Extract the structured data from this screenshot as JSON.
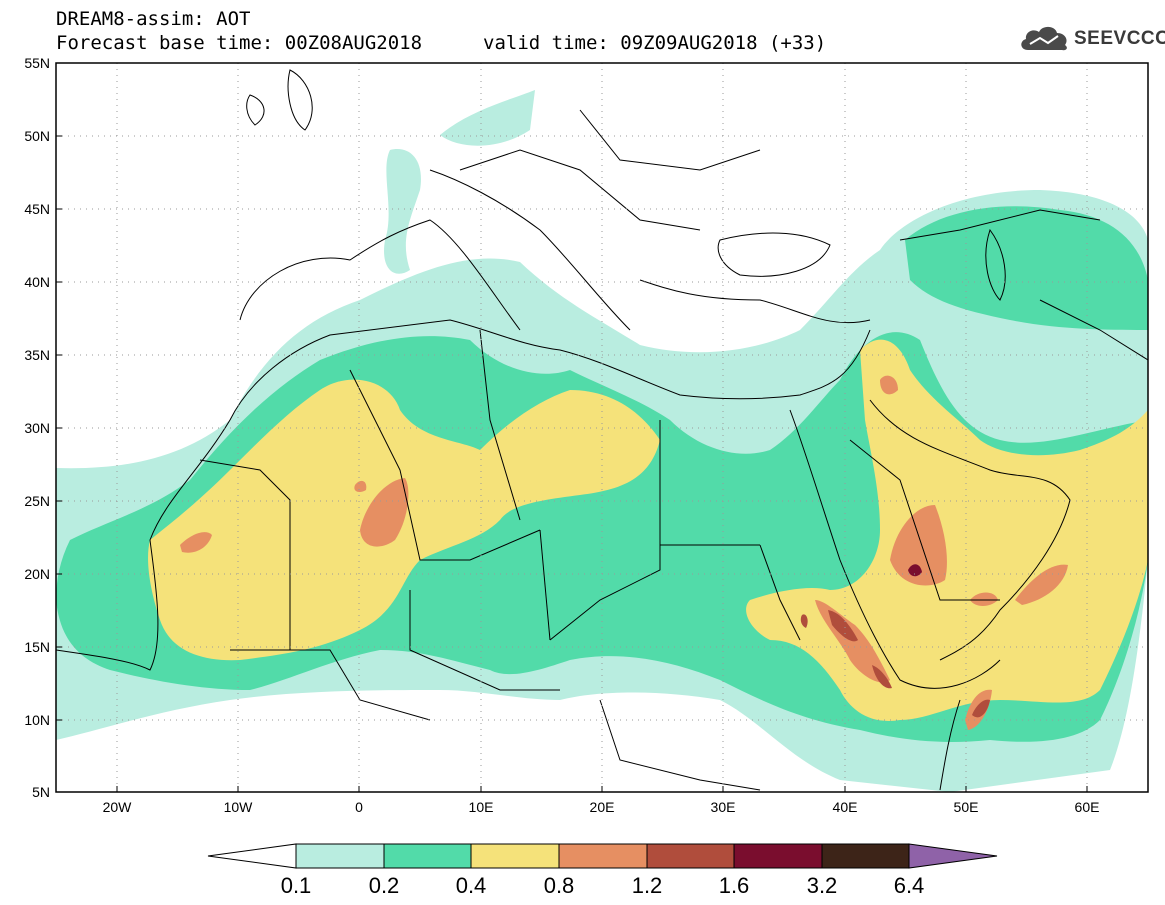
{
  "header": {
    "line1": "DREAM8-assim: AOT",
    "base_time": "Forecast base time: 00Z08AUG2018",
    "valid_time": "valid time: 09Z09AUG2018 (+33)"
  },
  "logo": {
    "text": "SEEVCCC",
    "icon": "cloud-icon"
  },
  "map": {
    "lat_labels": [
      "55N",
      "50N",
      "45N",
      "40N",
      "35N",
      "30N",
      "25N",
      "20N",
      "15N",
      "10N",
      "5N"
    ],
    "lon_labels": [
      "20W",
      "10W",
      "0",
      "10E",
      "20E",
      "30E",
      "40E",
      "50E",
      "60E"
    ],
    "lon_range": [
      -25,
      65
    ],
    "lat_range": [
      5,
      55
    ],
    "grid": "dotted"
  },
  "colorbar": {
    "labels": [
      "0.1",
      "0.2",
      "0.4",
      "0.8",
      "1.2",
      "1.6",
      "3.2",
      "6.4"
    ],
    "colors": [
      "#ffffff",
      "#b9ede0",
      "#52dba9",
      "#f5e27a",
      "#e68f62",
      "#b04d3c",
      "#7a0d2e",
      "#3d2418",
      "#8f62a8"
    ]
  }
}
